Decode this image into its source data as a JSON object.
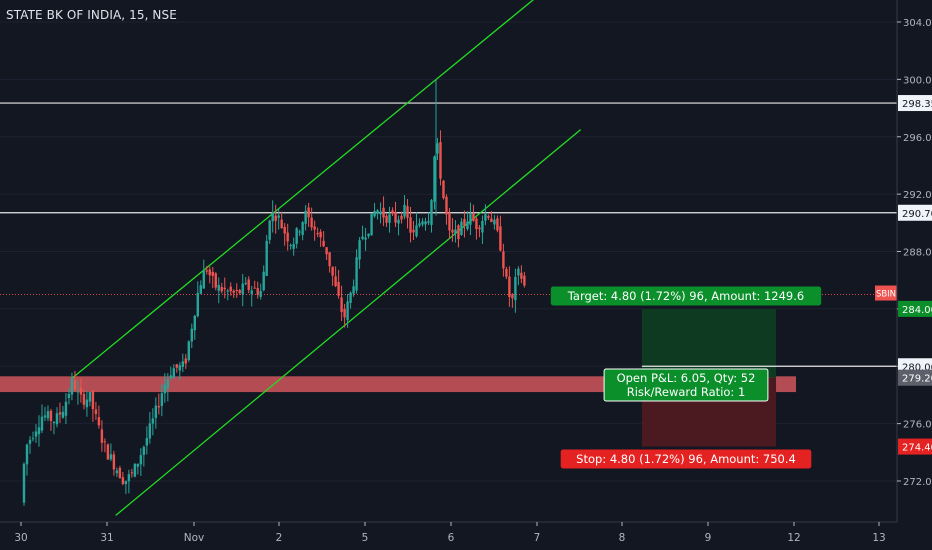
{
  "header": {
    "title": "STATE BK OF INDIA, 15, NSE"
  },
  "colors": {
    "background": "#131722",
    "up": "#26a69a",
    "down": "#ef5350",
    "channel": "#22dd22",
    "hline": "#e8e8e8",
    "zone": "#d0565c",
    "target_fill": "#0f3a22",
    "stop_fill": "#4a1a20",
    "target_label": "#0a8f2a",
    "stop_label": "#e52222",
    "axis_text": "#b2b5be"
  },
  "chart_data": {
    "type": "candlestick",
    "symbol_tag": "SBIN",
    "ylim": [
      269.5,
      306
    ],
    "y_ticks": [
      "304.00",
      "300.00",
      "296.00",
      "292.00",
      "288.00",
      "284.00",
      "280.00",
      "276.00",
      "272.00"
    ],
    "x_ticks": [
      "30",
      "31",
      "Nov",
      "2",
      "5",
      "6",
      "7",
      "8",
      "9",
      "12",
      "13"
    ],
    "price_badges": [
      {
        "label": "298.35",
        "value": 298.35,
        "style": "light"
      },
      {
        "label": "290.70",
        "value": 290.7,
        "style": "light"
      },
      {
        "label": "284.00",
        "value": 284.0,
        "style": "green"
      },
      {
        "label": "280.00",
        "value": 280.0,
        "style": "light"
      },
      {
        "label": "279.20",
        "value": 279.2,
        "style": "gray"
      },
      {
        "label": "274.40",
        "value": 274.4,
        "style": "red"
      }
    ],
    "horizontal_lines": [
      298.35,
      290.7
    ],
    "last_price": 285.0,
    "support_zone": [
      278.2,
      279.3
    ],
    "channel": {
      "upper": [
        {
          "x": 0.6,
          "y": 279.2
        },
        {
          "x": 6.0,
          "y": 305.8
        }
      ],
      "lower": [
        {
          "x": 1.1,
          "y": 269.6
        },
        {
          "x": 6.5,
          "y": 296.5
        }
      ]
    },
    "trade": {
      "x_start": 7.2,
      "x_end": 8.2,
      "entry": 279.2,
      "target": 284.0,
      "stop": 274.4,
      "open_level": 280.0
    },
    "labels": {
      "target": "Target: 4.80 (1.72%) 96, Amount: 1249.6",
      "open_pnl": "Open P&L: 6.05, Qty: 52",
      "risk_reward": "Risk/Reward Ratio: 1",
      "stop": "Stop: 4.80 (1.72%) 96, Amount: 750.4"
    },
    "price_path": [
      {
        "x": 0.0,
        "y": 270.5
      },
      {
        "x": 0.05,
        "y": 274.3
      },
      {
        "x": 0.15,
        "y": 275.5
      },
      {
        "x": 0.25,
        "y": 276.6
      },
      {
        "x": 0.4,
        "y": 276.2
      },
      {
        "x": 0.5,
        "y": 277.2
      },
      {
        "x": 0.6,
        "y": 279.0
      },
      {
        "x": 0.68,
        "y": 277.7
      },
      {
        "x": 0.8,
        "y": 277.8
      },
      {
        "x": 0.92,
        "y": 275.3
      },
      {
        "x": 1.0,
        "y": 274.0
      },
      {
        "x": 1.1,
        "y": 273.0
      },
      {
        "x": 1.2,
        "y": 272.0
      },
      {
        "x": 1.3,
        "y": 272.5
      },
      {
        "x": 1.45,
        "y": 274.8
      },
      {
        "x": 1.55,
        "y": 276.5
      },
      {
        "x": 1.65,
        "y": 278.5
      },
      {
        "x": 1.75,
        "y": 279.8
      },
      {
        "x": 1.9,
        "y": 280.0
      },
      {
        "x": 1.97,
        "y": 282.4
      },
      {
        "x": 2.07,
        "y": 285.6
      },
      {
        "x": 2.15,
        "y": 286.9
      },
      {
        "x": 2.25,
        "y": 285.6
      },
      {
        "x": 2.35,
        "y": 285.3
      },
      {
        "x": 2.5,
        "y": 285.0
      },
      {
        "x": 2.6,
        "y": 285.5
      },
      {
        "x": 2.7,
        "y": 285.4
      },
      {
        "x": 2.8,
        "y": 285.2
      },
      {
        "x": 2.88,
        "y": 290.5
      },
      {
        "x": 2.97,
        "y": 290.6
      },
      {
        "x": 3.05,
        "y": 289.5
      },
      {
        "x": 3.15,
        "y": 288.5
      },
      {
        "x": 3.3,
        "y": 290.6
      },
      {
        "x": 3.42,
        "y": 289.5
      },
      {
        "x": 3.55,
        "y": 288.0
      },
      {
        "x": 3.65,
        "y": 285.5
      },
      {
        "x": 3.75,
        "y": 283.3
      },
      {
        "x": 3.85,
        "y": 285.5
      },
      {
        "x": 3.95,
        "y": 289.0
      },
      {
        "x": 4.05,
        "y": 289.8
      },
      {
        "x": 4.12,
        "y": 291.0
      },
      {
        "x": 4.22,
        "y": 290.5
      },
      {
        "x": 4.35,
        "y": 290.2
      },
      {
        "x": 4.45,
        "y": 290.9
      },
      {
        "x": 4.55,
        "y": 289.0
      },
      {
        "x": 4.65,
        "y": 290.3
      },
      {
        "x": 4.75,
        "y": 290.5
      },
      {
        "x": 4.82,
        "y": 296.0
      },
      {
        "x": 4.9,
        "y": 292.0
      },
      {
        "x": 4.98,
        "y": 289.0
      },
      {
        "x": 5.08,
        "y": 289.3
      },
      {
        "x": 5.2,
        "y": 290.5
      },
      {
        "x": 5.3,
        "y": 289.8
      },
      {
        "x": 5.42,
        "y": 290.8
      },
      {
        "x": 5.5,
        "y": 289.8
      },
      {
        "x": 5.57,
        "y": 288.4
      },
      {
        "x": 5.65,
        "y": 285.4
      },
      {
        "x": 5.7,
        "y": 284.3
      },
      {
        "x": 5.76,
        "y": 286.5
      },
      {
        "x": 5.82,
        "y": 286.2
      },
      {
        "x": 5.87,
        "y": 285.0
      }
    ]
  }
}
